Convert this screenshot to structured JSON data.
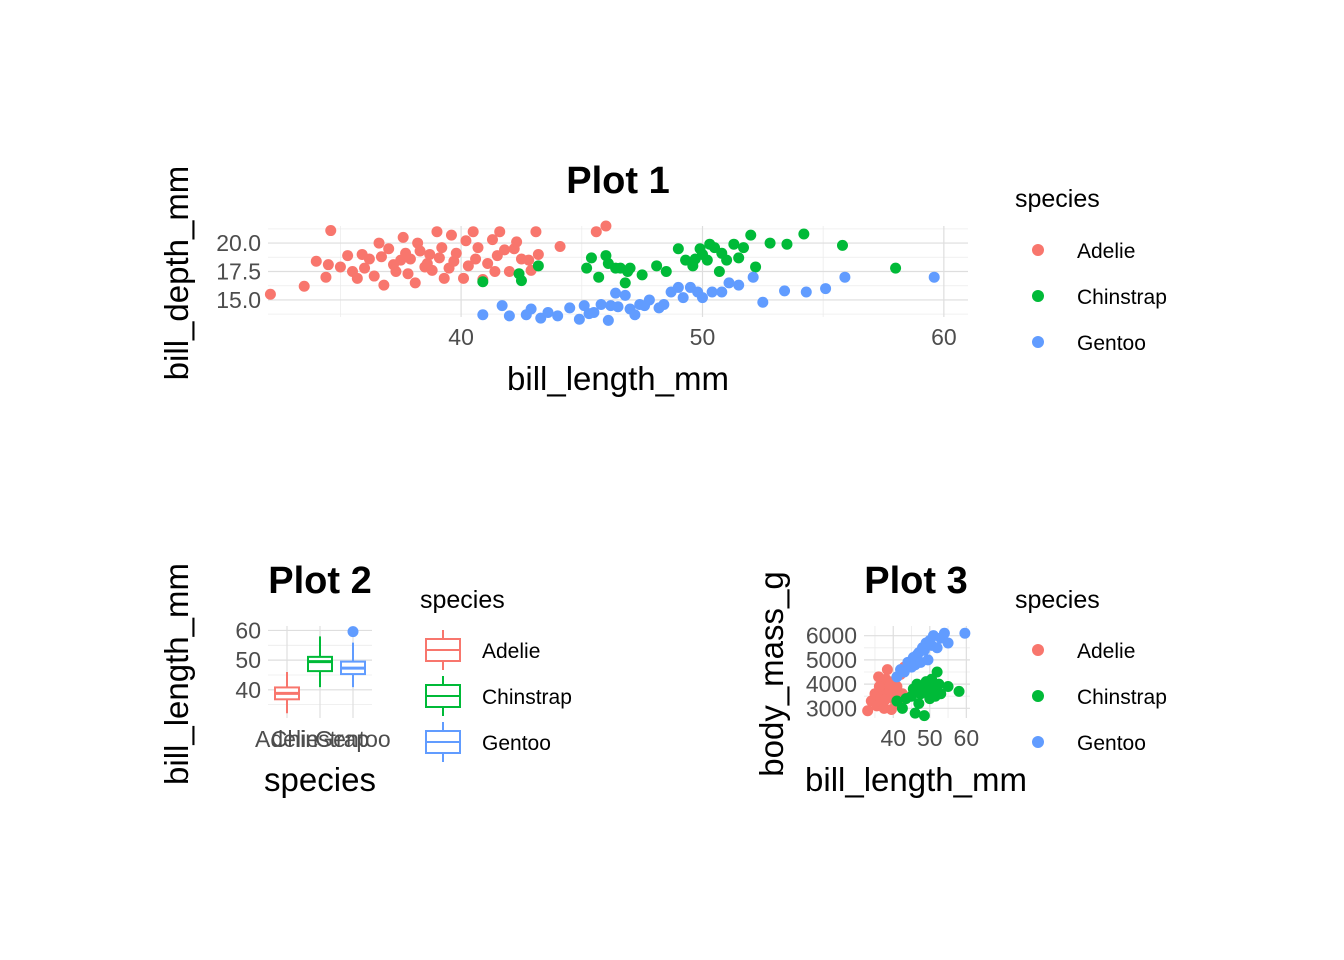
{
  "colors": {
    "Adelie": "#F8766D",
    "Chinstrap": "#00BA38",
    "Gentoo": "#619CFF"
  },
  "chart_data": [
    {
      "type": "scatter",
      "title": "Plot 1",
      "xlabel": "bill_length_mm",
      "ylabel": "bill_depth_mm",
      "xlim": [
        32,
        61
      ],
      "ylim": [
        13.5,
        21.5
      ],
      "x_ticks": [
        "40",
        "50",
        "60"
      ],
      "y_ticks": [
        "15.0",
        "17.5",
        "20.0"
      ],
      "grid": true,
      "legend": {
        "title": "species",
        "position": "right",
        "entries": [
          "Adelie",
          "Chinstrap",
          "Gentoo"
        ]
      },
      "series": [
        {
          "name": "Adelie",
          "x": [
            32.1,
            33.5,
            34.0,
            34.4,
            34.5,
            34.6,
            35.0,
            35.3,
            35.5,
            35.7,
            35.9,
            36.0,
            36.2,
            36.4,
            36.6,
            36.7,
            36.8,
            37.0,
            37.2,
            37.3,
            37.5,
            37.6,
            37.7,
            37.8,
            37.9,
            38.1,
            38.2,
            38.3,
            38.5,
            38.6,
            38.7,
            38.8,
            39.0,
            39.1,
            39.2,
            39.3,
            39.5,
            39.6,
            39.7,
            39.8,
            40.1,
            40.2,
            40.3,
            40.5,
            40.6,
            40.7,
            40.9,
            41.1,
            41.3,
            41.4,
            41.5,
            41.6,
            41.8,
            42.0,
            42.2,
            42.3,
            42.5,
            42.8,
            42.9,
            43.1,
            43.2,
            44.1,
            45.6,
            46.0
          ],
          "y": [
            15.5,
            16.2,
            18.4,
            17.0,
            18.1,
            21.1,
            17.9,
            18.9,
            17.5,
            16.9,
            19.0,
            17.8,
            18.6,
            17.1,
            20.0,
            18.8,
            16.3,
            19.5,
            18.1,
            17.5,
            18.5,
            20.5,
            19.1,
            17.3,
            18.6,
            16.5,
            20.0,
            19.3,
            17.9,
            18.2,
            19.0,
            17.6,
            21.0,
            18.7,
            19.6,
            16.9,
            17.8,
            20.7,
            18.4,
            19.1,
            16.9,
            20.2,
            18.0,
            21.0,
            18.6,
            19.6,
            16.8,
            18.2,
            20.3,
            17.5,
            18.9,
            21.0,
            19.4,
            17.5,
            19.5,
            20.1,
            18.6,
            18.5,
            17.6,
            21.0,
            19.0,
            19.7,
            21.0,
            21.5
          ]
        },
        {
          "name": "Chinstrap",
          "x": [
            40.9,
            42.4,
            42.5,
            43.2,
            45.2,
            45.4,
            45.7,
            46.0,
            46.1,
            46.4,
            46.6,
            46.8,
            46.9,
            47.0,
            47.5,
            48.1,
            48.5,
            49.0,
            49.3,
            49.6,
            49.7,
            49.9,
            50.0,
            50.2,
            50.3,
            50.5,
            50.7,
            50.8,
            51.0,
            51.3,
            51.5,
            51.7,
            52.0,
            52.2,
            52.8,
            53.5,
            54.2,
            55.8,
            58.0
          ],
          "y": [
            16.6,
            17.3,
            16.7,
            18.0,
            17.8,
            18.7,
            17.0,
            18.9,
            18.2,
            17.8,
            17.8,
            16.5,
            17.5,
            17.8,
            17.2,
            18.0,
            17.5,
            19.5,
            18.5,
            18.0,
            18.6,
            19.5,
            19.0,
            18.5,
            19.9,
            19.6,
            17.5,
            19.1,
            18.5,
            19.9,
            18.7,
            19.6,
            20.7,
            17.9,
            20.0,
            19.9,
            20.8,
            19.8,
            17.8
          ]
        },
        {
          "name": "Gentoo",
          "x": [
            40.9,
            41.7,
            42.0,
            42.7,
            42.9,
            43.3,
            43.6,
            44.0,
            44.5,
            44.9,
            45.1,
            45.3,
            45.5,
            45.8,
            46.1,
            46.2,
            46.4,
            46.5,
            46.8,
            47.0,
            47.2,
            47.4,
            47.6,
            47.8,
            48.2,
            48.4,
            48.7,
            49.0,
            49.2,
            49.5,
            49.8,
            50.0,
            50.4,
            50.8,
            51.1,
            51.5,
            52.1,
            52.5,
            53.4,
            54.3,
            55.1,
            55.9,
            59.6
          ],
          "y": [
            13.7,
            14.5,
            13.6,
            13.7,
            14.2,
            13.4,
            13.9,
            13.6,
            14.3,
            13.3,
            14.5,
            13.8,
            13.9,
            14.6,
            13.2,
            14.5,
            15.6,
            14.4,
            15.4,
            14.2,
            13.7,
            14.6,
            14.5,
            15.0,
            14.3,
            14.6,
            15.7,
            16.1,
            15.2,
            16.1,
            15.7,
            15.2,
            15.7,
            15.7,
            16.5,
            16.3,
            17.0,
            14.8,
            15.8,
            15.7,
            16.0,
            17.0,
            17.0
          ]
        }
      ]
    },
    {
      "type": "box",
      "title": "Plot 2",
      "xlabel": "species",
      "ylabel": "bill_length_mm",
      "ylim": [
        30.5,
        61.5
      ],
      "y_ticks": [
        "40",
        "50",
        "60"
      ],
      "categories": [
        "Adelie",
        "Chinstrap",
        "Gentoo"
      ],
      "grid": true,
      "legend": {
        "title": "species",
        "position": "right",
        "entries": [
          "Adelie",
          "Chinstrap",
          "Gentoo"
        ]
      },
      "boxes": [
        {
          "name": "Adelie",
          "min": 32.1,
          "q1": 36.8,
          "median": 38.8,
          "q3": 40.8,
          "max": 46.0,
          "outliers": []
        },
        {
          "name": "Chinstrap",
          "min": 40.9,
          "q1": 46.3,
          "median": 49.5,
          "q3": 51.1,
          "max": 58.0,
          "outliers": []
        },
        {
          "name": "Gentoo",
          "min": 40.9,
          "q1": 45.3,
          "median": 47.3,
          "q3": 49.5,
          "max": 55.9,
          "outliers": [
            59.6
          ]
        }
      ]
    },
    {
      "type": "scatter",
      "title": "Plot 3",
      "xlabel": "bill_length_mm",
      "ylabel": "body_mass_g",
      "xlim": [
        32,
        61
      ],
      "ylim": [
        2600,
        6400
      ],
      "x_ticks": [
        "40",
        "50",
        "60"
      ],
      "y_ticks": [
        "3000",
        "4000",
        "5000",
        "6000"
      ],
      "grid": true,
      "legend": {
        "title": "species",
        "position": "right",
        "entries": [
          "Adelie",
          "Chinstrap",
          "Gentoo"
        ]
      },
      "series": [
        {
          "name": "Adelie",
          "x": [
            33.0,
            34.0,
            35.0,
            35.5,
            36.0,
            36.5,
            37.0,
            37.5,
            38.0,
            38.5,
            39.0,
            39.5,
            40.0,
            40.5,
            41.0,
            41.5,
            42.0,
            42.5,
            43.0,
            36.2,
            37.8,
            39.2,
            40.8,
            38.4
          ],
          "y": [
            2900,
            3300,
            3600,
            3100,
            4300,
            3400,
            3800,
            3000,
            4200,
            3500,
            3700,
            2950,
            4100,
            3300,
            3900,
            3200,
            4400,
            3600,
            4700,
            3900,
            3350,
            4000,
            3700,
            4600
          ]
        },
        {
          "name": "Chinstrap",
          "x": [
            41.0,
            42.5,
            43.5,
            45.0,
            45.5,
            46.0,
            46.5,
            47.0,
            47.5,
            48.0,
            48.5,
            49.0,
            49.5,
            50.0,
            50.5,
            51.0,
            51.5,
            52.0,
            52.5,
            53.0,
            55.0,
            58.0
          ],
          "y": [
            3300,
            3000,
            3400,
            3500,
            3800,
            2800,
            4000,
            3200,
            3600,
            3900,
            2700,
            4100,
            3700,
            3400,
            4200,
            3800,
            3500,
            4500,
            4000,
            3600,
            3900,
            3700
          ]
        },
        {
          "name": "Gentoo",
          "x": [
            41.0,
            42.0,
            43.0,
            44.0,
            45.0,
            45.5,
            46.0,
            46.5,
            47.0,
            47.5,
            48.0,
            48.5,
            49.0,
            49.5,
            50.0,
            50.5,
            51.0,
            52.0,
            53.0,
            54.0,
            55.0,
            59.6
          ],
          "y": [
            4300,
            4600,
            4500,
            4900,
            4700,
            5100,
            4800,
            5200,
            5300,
            4900,
            5500,
            5400,
            5700,
            5000,
            5800,
            5600,
            6000,
            5500,
            5900,
            6100,
            5700,
            6100
          ]
        }
      ]
    }
  ]
}
